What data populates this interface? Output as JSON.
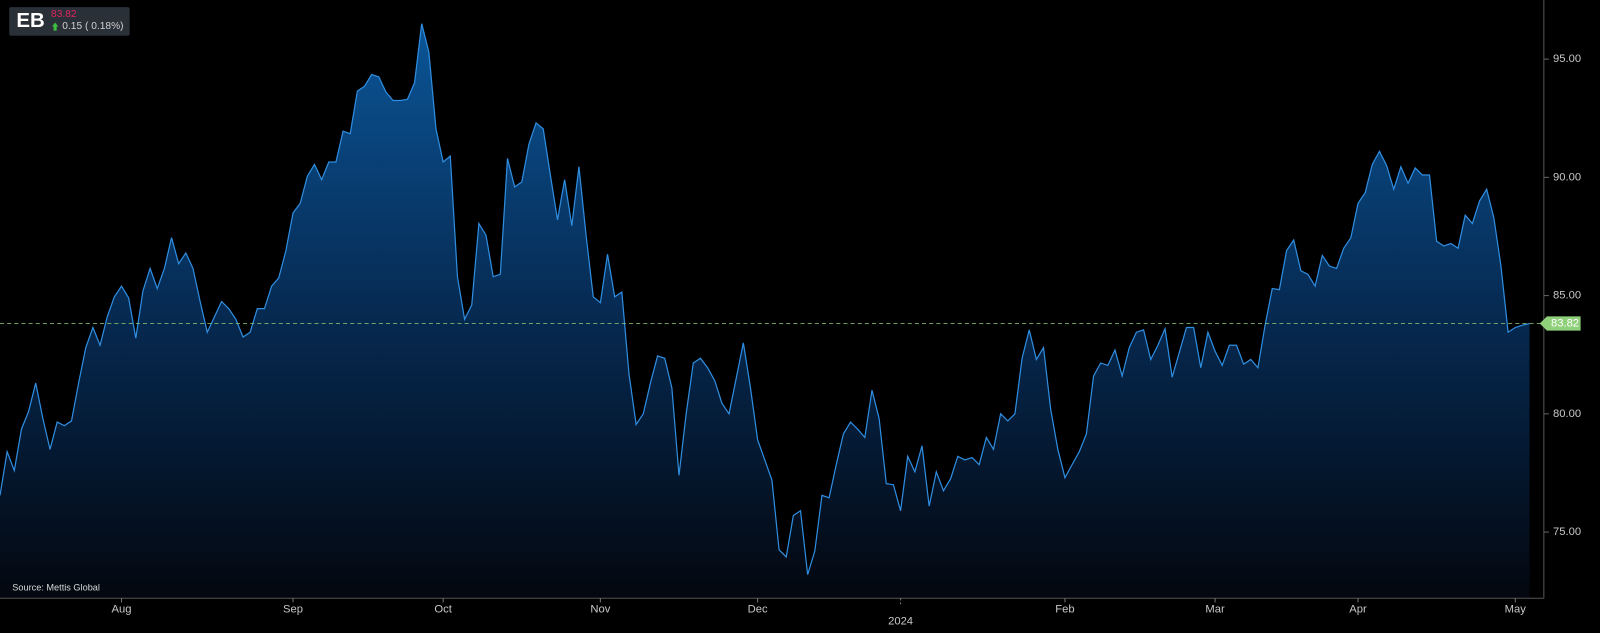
{
  "chart_data": {
    "type": "area",
    "ticker": "EB",
    "last_price": 83.82,
    "change": "0.15 ( 0.18%)",
    "source": "Source: Mettis Global",
    "color": "#2f8de0",
    "ylim": [
      72.2,
      97.5
    ],
    "yticks": [
      {
        "value": 75,
        "label": "75.00"
      },
      {
        "value": 80,
        "label": "80.00"
      },
      {
        "value": 85,
        "label": "85.00"
      },
      {
        "value": 90,
        "label": "90.00"
      },
      {
        "value": 95,
        "label": "95.00"
      }
    ],
    "xlim": [
      0,
      216
    ],
    "xticks": [
      {
        "value": 17,
        "label": "Aug"
      },
      {
        "value": 41,
        "label": "Sep"
      },
      {
        "value": 62,
        "label": "Oct"
      },
      {
        "value": 84,
        "label": "Nov"
      },
      {
        "value": 106,
        "label": "Dec"
      },
      {
        "value": 126,
        "label": "2024"
      },
      {
        "value": 149,
        "label": "Feb"
      },
      {
        "value": 170,
        "label": "Mar"
      },
      {
        "value": 190,
        "label": "Apr"
      },
      {
        "value": 212,
        "label": "May"
      }
    ],
    "values": [
      76.55,
      78.4,
      77.6,
      79.35,
      80.1,
      81.3,
      79.8,
      78.5,
      79.65,
      79.5,
      79.7,
      81.3,
      82.8,
      83.65,
      82.9,
      84.1,
      84.95,
      85.4,
      84.9,
      83.2,
      85.2,
      86.15,
      85.3,
      86.15,
      87.45,
      86.35,
      86.8,
      86.15,
      84.75,
      83.45,
      84.1,
      84.75,
      84.45,
      84.0,
      83.25,
      83.45,
      84.45,
      84.45,
      85.4,
      85.75,
      86.9,
      88.5,
      88.9,
      90.05,
      90.55,
      89.9,
      90.65,
      90.65,
      91.95,
      91.85,
      93.65,
      93.85,
      94.35,
      94.25,
      93.6,
      93.25,
      93.25,
      93.3,
      94.0,
      96.5,
      95.3,
      92.05,
      90.65,
      90.9,
      85.8,
      84.0,
      84.6,
      88.05,
      87.55,
      85.8,
      85.9,
      90.8,
      89.6,
      89.8,
      91.4,
      92.3,
      92.05,
      90.1,
      88.2,
      89.9,
      87.95,
      90.45,
      87.55,
      84.95,
      84.7,
      86.75,
      84.95,
      85.15,
      81.7,
      79.55,
      80.0,
      81.3,
      82.45,
      82.35,
      81.1,
      77.4,
      80.0,
      82.15,
      82.35,
      81.95,
      81.4,
      80.45,
      80.0,
      81.5,
      83.0,
      81.1,
      78.9,
      78.05,
      77.2,
      74.25,
      73.95,
      75.7,
      75.9,
      73.2,
      74.2,
      76.55,
      76.45,
      77.85,
      79.15,
      79.65,
      79.35,
      79.0,
      81.0,
      79.8,
      77.05,
      77.0,
      75.9,
      78.2,
      77.55,
      78.65,
      76.1,
      77.55,
      76.75,
      77.25,
      78.2,
      78.05,
      78.15,
      77.85,
      79.0,
      78.5,
      80.0,
      79.7,
      80.0,
      82.35,
      83.55,
      82.3,
      82.8,
      80.2,
      78.5,
      77.3,
      77.85,
      78.4,
      79.15,
      81.6,
      82.15,
      82.05,
      82.7,
      81.6,
      82.8,
      83.45,
      83.55,
      82.3,
      82.9,
      83.6,
      81.55,
      82.6,
      83.65,
      83.65,
      81.95,
      83.45,
      82.65,
      82.05,
      82.9,
      82.9,
      82.1,
      82.3,
      81.95,
      83.75,
      85.3,
      85.25,
      86.9,
      87.35,
      86.05,
      85.9,
      85.4,
      86.7,
      86.25,
      86.15,
      87.0,
      87.45,
      88.9,
      89.35,
      90.55,
      91.1,
      90.5,
      89.5,
      90.45,
      89.75,
      90.4,
      90.1,
      90.1,
      87.3,
      87.1,
      87.2,
      87.0,
      88.4,
      88.05,
      89.0,
      89.5,
      88.3,
      86.25,
      83.45,
      83.65,
      83.75,
      83.82
    ]
  }
}
